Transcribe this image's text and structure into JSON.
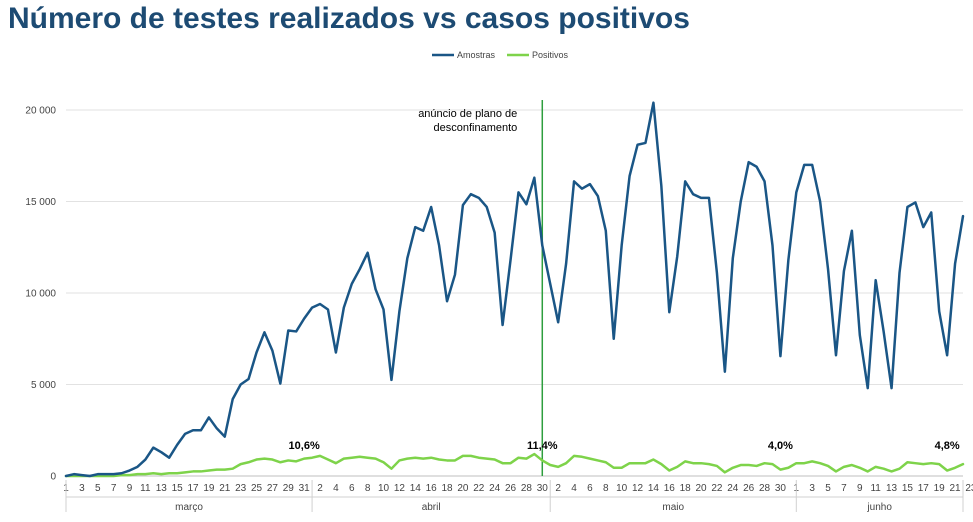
{
  "chart_data": {
    "type": "line",
    "title": "Número de testes realizados vs casos positivos",
    "ylim": [
      0,
      20000
    ],
    "y_ticks": [
      "0",
      "5 000",
      "10 000",
      "15 000",
      "20 000"
    ],
    "months": [
      "março",
      "abril",
      "maio",
      "junho"
    ],
    "x_day_labels": [
      "1",
      "3",
      "5",
      "7",
      "9",
      "11",
      "13",
      "15",
      "17",
      "19",
      "21",
      "23",
      "25",
      "27",
      "29",
      "31",
      "2",
      "4",
      "6",
      "8",
      "10",
      "12",
      "14",
      "16",
      "18",
      "20",
      "22",
      "24",
      "26",
      "28",
      "30",
      "2",
      "4",
      "6",
      "8",
      "10",
      "12",
      "14",
      "16",
      "18",
      "20",
      "22",
      "24",
      "26",
      "28",
      "30",
      "1",
      "3",
      "5",
      "7",
      "9",
      "11",
      "13",
      "15",
      "17",
      "19",
      "21",
      "23"
    ],
    "legend": [
      "Amostras",
      "Positivos"
    ],
    "colors": {
      "Amostras": "#1a5686",
      "Positivos": "#7ed34a",
      "marker": "#2e9e3e"
    },
    "series": [
      {
        "name": "Amostras",
        "values": [
          0,
          100,
          50,
          0,
          100,
          100,
          100,
          150,
          300,
          500,
          900,
          1550,
          1300,
          1000,
          1700,
          2300,
          2500,
          2500,
          3200,
          2600,
          2150,
          4200,
          5000,
          5300,
          6750,
          7850,
          6850,
          5050,
          7950,
          7900,
          8600,
          9200,
          9400,
          9100,
          6750,
          9200,
          10500,
          11300,
          12200,
          10200,
          9100,
          5250,
          9000,
          11900,
          13600,
          13400,
          14700,
          12600,
          9550,
          11000,
          14800,
          15400,
          15200,
          14700,
          13300,
          8250,
          11800,
          15500,
          14850,
          16300,
          12600,
          10500,
          8400,
          11600,
          16100,
          15700,
          15950,
          15300,
          13400,
          7500,
          12600,
          16400,
          18100,
          18200,
          20400,
          15850,
          8950,
          12000,
          16100,
          15400,
          15200,
          15200,
          11100,
          5700,
          11900,
          15000,
          17150,
          16900,
          16100,
          12600,
          6550,
          11800,
          15500,
          17000,
          17000,
          15000,
          11300,
          6600,
          11200,
          13400,
          7700,
          4800,
          10700,
          7900,
          4800,
          11100,
          14700,
          14950,
          13600,
          14400,
          9000,
          6600,
          11600,
          14200
        ]
      },
      {
        "name": "Positivos",
        "values": [
          0,
          0,
          0,
          0,
          0,
          0,
          0,
          50,
          50,
          100,
          100,
          150,
          100,
          150,
          150,
          200,
          250,
          250,
          300,
          350,
          350,
          400,
          650,
          750,
          900,
          950,
          900,
          750,
          850,
          800,
          950,
          1000,
          1100,
          900,
          700,
          950,
          1000,
          1050,
          1000,
          950,
          750,
          400,
          850,
          950,
          1000,
          950,
          1000,
          900,
          850,
          850,
          1100,
          1100,
          1000,
          950,
          900,
          700,
          700,
          1000,
          950,
          1200,
          850,
          600,
          500,
          700,
          1100,
          1050,
          950,
          850,
          750,
          450,
          450,
          700,
          700,
          700,
          900,
          650,
          300,
          500,
          800,
          700,
          700,
          650,
          550,
          200,
          450,
          600,
          600,
          550,
          700,
          650,
          350,
          450,
          700,
          700,
          800,
          700,
          550,
          250,
          500,
          600,
          450,
          250,
          500,
          400,
          250,
          400,
          750,
          700,
          650,
          700,
          650,
          300,
          450,
          650
        ]
      }
    ],
    "annotations": [
      {
        "text": "10,6%",
        "day": 31
      },
      {
        "text": "11,4%",
        "day": 61
      },
      {
        "text": "4,0%",
        "day": 91
      },
      {
        "text": "4,8%",
        "day": 112
      }
    ],
    "vertical_marker": {
      "day": 61,
      "label": [
        "anúncio de plano de",
        "desconfinamento"
      ]
    }
  }
}
